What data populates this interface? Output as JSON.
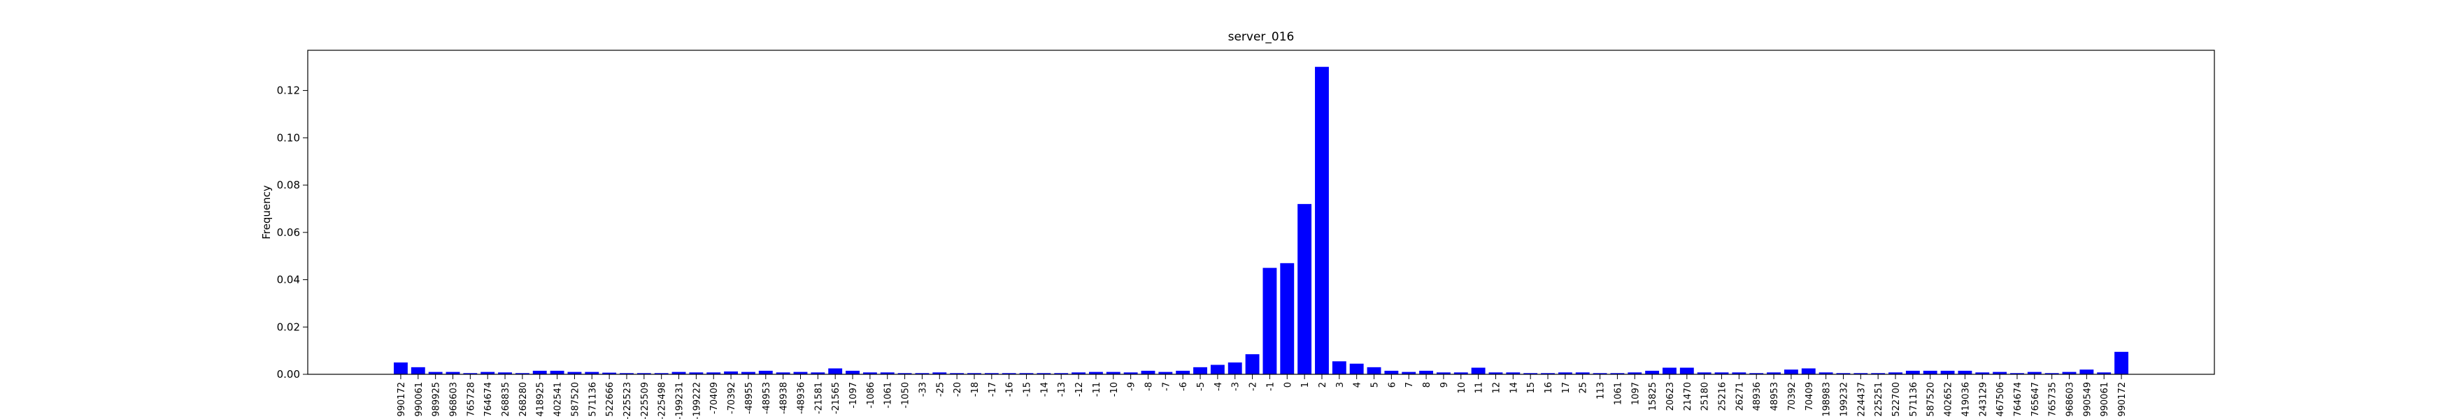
{
  "chart_data": {
    "type": "bar",
    "title": "server_016",
    "ylabel": "Frequency",
    "color": "#0000ff",
    "categories": [
      "990172",
      "990061",
      "989925",
      "968603",
      "765728",
      "764674",
      "268835",
      "268280",
      "418925",
      "402541",
      "587520",
      "571136",
      "522666",
      "-225523",
      "-225509",
      "-225498",
      "-199231",
      "-199222",
      "-70409",
      "-70392",
      "-48955",
      "-48953",
      "-48938",
      "-48936",
      "-21581",
      "-21565",
      "-1097",
      "-1086",
      "-1061",
      "-1050",
      "-33",
      "-25",
      "-20",
      "-18",
      "-17",
      "-16",
      "-15",
      "-14",
      "-13",
      "-12",
      "-11",
      "-10",
      "-9",
      "-8",
      "-7",
      "-6",
      "-5",
      "-4",
      "-3",
      "-2",
      "-1",
      "0",
      "1",
      "2",
      "3",
      "4",
      "5",
      "6",
      "7",
      "8",
      "9",
      "10",
      "11",
      "12",
      "14",
      "15",
      "16",
      "17",
      "25",
      "113",
      "1061",
      "1097",
      "15825",
      "20623",
      "21470",
      "25180",
      "25216",
      "26271",
      "48936",
      "48953",
      "70392",
      "70409",
      "198983",
      "199232",
      "224437",
      "225251",
      "522700",
      "571136",
      "587520",
      "402652",
      "419036",
      "243129",
      "467506",
      "764674",
      "765647",
      "765735",
      "968603",
      "990549",
      "990061",
      "990172"
    ],
    "values": [
      0.005,
      0.003,
      0.001,
      0.001,
      0.0005,
      0.001,
      0.0008,
      0.0005,
      0.0015,
      0.0015,
      0.001,
      0.001,
      0.0007,
      0.0005,
      0.0005,
      0.0005,
      0.001,
      0.0008,
      0.0008,
      0.0012,
      0.001,
      0.0015,
      0.0008,
      0.001,
      0.0008,
      0.0025,
      0.0015,
      0.0008,
      0.0008,
      0.0005,
      0.0005,
      0.0008,
      0.0005,
      0.0005,
      0.0005,
      0.0005,
      0.0005,
      0.0005,
      0.0005,
      0.0008,
      0.001,
      0.001,
      0.0008,
      0.0015,
      0.001,
      0.0015,
      0.003,
      0.004,
      0.005,
      0.0085,
      0.045,
      0.047,
      0.072,
      0.13,
      0.0055,
      0.0045,
      0.003,
      0.0015,
      0.001,
      0.0015,
      0.0008,
      0.0008,
      0.0028,
      0.0008,
      0.0008,
      0.0005,
      0.0005,
      0.0008,
      0.0008,
      0.0005,
      0.0005,
      0.0008,
      0.0015,
      0.0028,
      0.0028,
      0.0008,
      0.0008,
      0.0008,
      0.0005,
      0.0008,
      0.002,
      0.0025,
      0.0008,
      0.0005,
      0.0005,
      0.0005,
      0.0008,
      0.0015,
      0.0015,
      0.0015,
      0.0015,
      0.0008,
      0.001,
      0.0005,
      0.001,
      0.0005,
      0.001,
      0.002,
      0.0008,
      0.0095
    ],
    "ylim": [
      0,
      0.137
    ],
    "yticks": [
      {
        "value": 0,
        "label": "0.00"
      },
      {
        "value": 0.02,
        "label": "0.02"
      },
      {
        "value": 0.04,
        "label": "0.04"
      },
      {
        "value": 0.06,
        "label": "0.06"
      },
      {
        "value": 0.08,
        "label": "0.08"
      },
      {
        "value": 0.1,
        "label": "0.10"
      },
      {
        "value": 0.12,
        "label": "0.12"
      }
    ]
  }
}
